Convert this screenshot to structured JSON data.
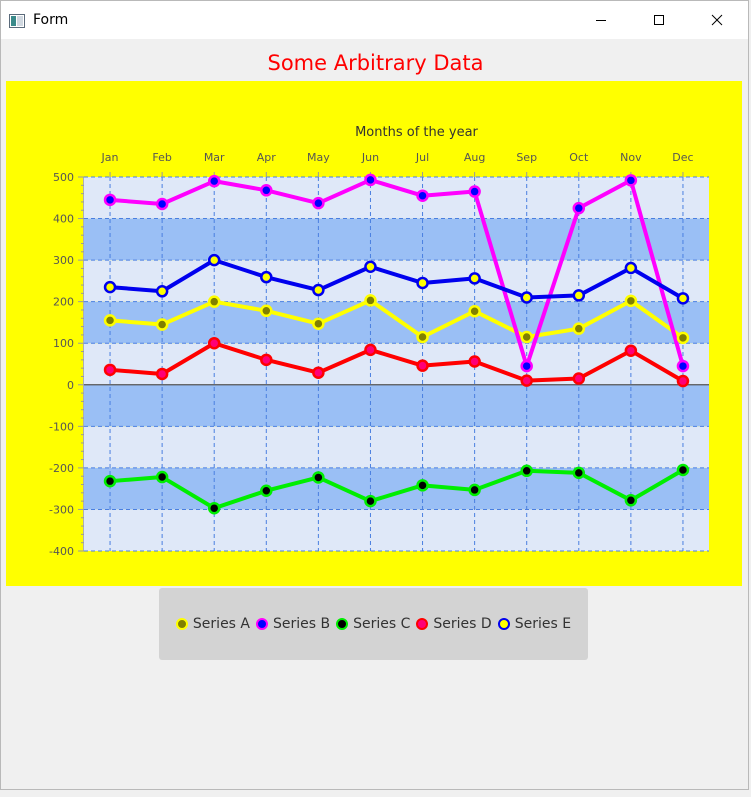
{
  "window": {
    "title": "Form"
  },
  "icons": {
    "app": "window-app-icon",
    "minimize": "minimize-icon",
    "maximize": "maximize-icon",
    "close": "close-icon"
  },
  "colors": {
    "title": "#ff0000",
    "panel": "#ffff00",
    "plot_light": "#dfe8f8",
    "plot_band": "#9abff5",
    "grid": "#4a7fe0",
    "zero_line": "#555555",
    "legend_bg": "#d3d3d3"
  },
  "chart_data": {
    "type": "line",
    "title": "Some Arbitrary Data",
    "xlabel": "Months of the year",
    "ylabel": "",
    "x_axis_position": "top",
    "categories": [
      "Jan",
      "Feb",
      "Mar",
      "Apr",
      "May",
      "Jun",
      "Jul",
      "Aug",
      "Sep",
      "Oct",
      "Nov",
      "Dec"
    ],
    "ylim": [
      -400,
      500
    ],
    "yticks": [
      500,
      400,
      300,
      200,
      100,
      0,
      -100,
      -200,
      -300,
      -400
    ],
    "grid": true,
    "legend_placement": "bottom",
    "series": [
      {
        "name": "Series A",
        "line_color": "#ffff00",
        "marker_fill": "#808000",
        "marker_border": "#ffff00",
        "values": [
          155,
          145,
          200,
          178,
          147,
          203,
          115,
          177,
          115,
          135,
          202,
          113
        ]
      },
      {
        "name": "Series B",
        "line_color": "#ff00ff",
        "marker_fill": "#0000ff",
        "marker_border": "#ff00ff",
        "values": [
          445,
          435,
          490,
          468,
          437,
          493,
          455,
          465,
          45,
          425,
          492,
          45
        ]
      },
      {
        "name": "Series C",
        "line_color": "#00ee00",
        "marker_fill": "#000000",
        "marker_border": "#00ee00",
        "values": [
          -232,
          -222,
          -297,
          -255,
          -223,
          -280,
          -242,
          -253,
          -207,
          -212,
          -278,
          -205
        ]
      },
      {
        "name": "Series D",
        "line_color": "#ff0000",
        "marker_fill": "#ff0077",
        "marker_border": "#ff0000",
        "values": [
          36,
          26,
          100,
          60,
          29,
          84,
          46,
          56,
          10,
          15,
          82,
          9
        ]
      },
      {
        "name": "Series E",
        "line_color": "#0000ee",
        "marker_fill": "#ffff00",
        "marker_border": "#0000ee",
        "values": [
          235,
          225,
          300,
          259,
          228,
          284,
          245,
          256,
          210,
          215,
          281,
          208
        ]
      }
    ]
  }
}
